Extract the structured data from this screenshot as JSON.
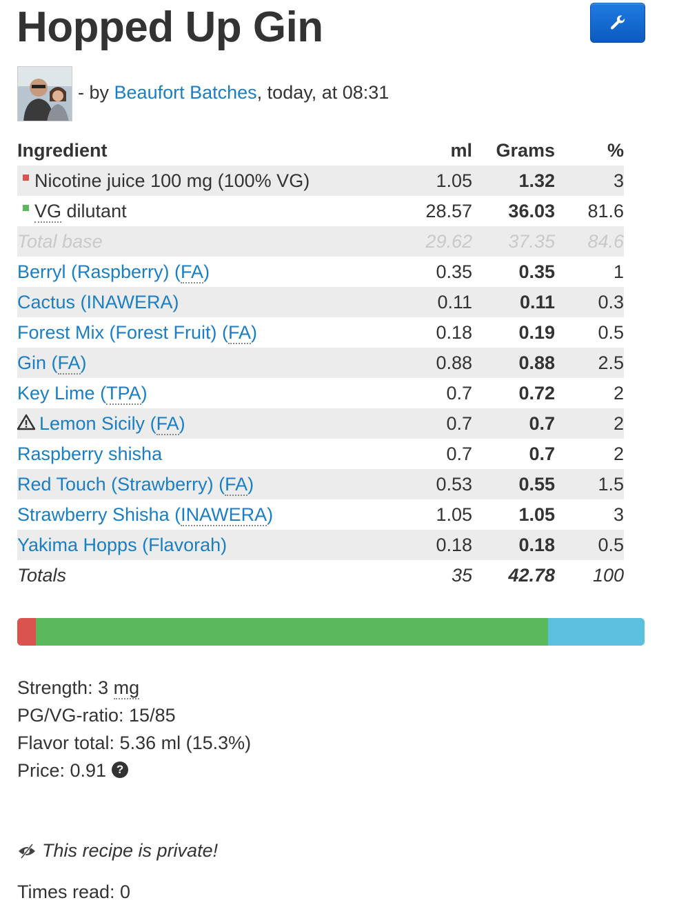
{
  "recipe": {
    "title": "Hopped Up Gin",
    "byline_prefix": "- by",
    "author": "Beaufort Batches",
    "byline_suffix": ", today, at 08:31"
  },
  "table": {
    "headers": {
      "ingredient": "Ingredient",
      "ml": "ml",
      "grams": "Grams",
      "percent": "%"
    },
    "base_rows": [
      {
        "name": "Nicotine juice 100 mg (100% VG)",
        "color": "#d9534f",
        "ml": "1.05",
        "grams": "1.32",
        "percent": "3"
      },
      {
        "name_abbr": "VG",
        "name_rest": " dilutant",
        "color": "#5cb85c",
        "ml": "28.57",
        "grams": "36.03",
        "percent": "81.6"
      }
    ],
    "total_base": {
      "label": "Total base",
      "ml": "29.62",
      "grams": "37.35",
      "percent": "84.6"
    },
    "flavors": [
      {
        "name": "Berryl (Raspberry)",
        "vendor": "FA",
        "ml": "0.35",
        "grams": "0.35",
        "percent": "1"
      },
      {
        "name": "Cactus (INAWERA)",
        "vendor": "",
        "ml": "0.11",
        "grams": "0.11",
        "percent": "0.3"
      },
      {
        "name": "Forest Mix (Forest Fruit)",
        "vendor": "FA",
        "ml": "0.18",
        "grams": "0.19",
        "percent": "0.5"
      },
      {
        "name": "Gin",
        "vendor": "FA",
        "ml": "0.88",
        "grams": "0.88",
        "percent": "2.5"
      },
      {
        "name": "Key Lime",
        "vendor": "TPA",
        "ml": "0.7",
        "grams": "0.72",
        "percent": "2"
      },
      {
        "name": "Lemon Sicily",
        "vendor": "FA",
        "ml": "0.7",
        "grams": "0.7",
        "percent": "2",
        "warning": true
      },
      {
        "name": "Raspberry shisha",
        "vendor": "",
        "ml": "0.7",
        "grams": "0.7",
        "percent": "2"
      },
      {
        "name": "Red Touch (Strawberry)",
        "vendor": "FA",
        "ml": "0.53",
        "grams": "0.55",
        "percent": "1.5"
      },
      {
        "name": "Strawberry Shisha",
        "vendor": "INAWERA",
        "ml": "1.05",
        "grams": "1.05",
        "percent": "3"
      },
      {
        "name": "Yakima Hopps (Flavorah)",
        "vendor": "",
        "ml": "0.18",
        "grams": "0.18",
        "percent": "0.5"
      }
    ],
    "totals": {
      "label": "Totals",
      "ml": "35",
      "grams": "42.78",
      "percent": "100"
    }
  },
  "composition_bar": {
    "segments": [
      {
        "name": "nicotine",
        "percent": 3,
        "color": "#d9534f"
      },
      {
        "name": "vg-dilutant",
        "percent": 81.6,
        "color": "#5cb85c"
      },
      {
        "name": "flavor",
        "percent": 15.4,
        "color": "#5bc0de"
      }
    ]
  },
  "stats": {
    "strength_label": "Strength: 3 ",
    "strength_unit": "mg",
    "pgvg": "PG/VG-ratio: 15/85",
    "flavor_total": "Flavor total: 5.36 ml (15.3%)",
    "price": "Price: 0.91"
  },
  "footer": {
    "private_text": "This recipe is private!",
    "times_read": "Times read: 0"
  },
  "colors": {
    "link": "#1a7ec4",
    "button": "#1570d4",
    "stripe": "#ececec"
  }
}
